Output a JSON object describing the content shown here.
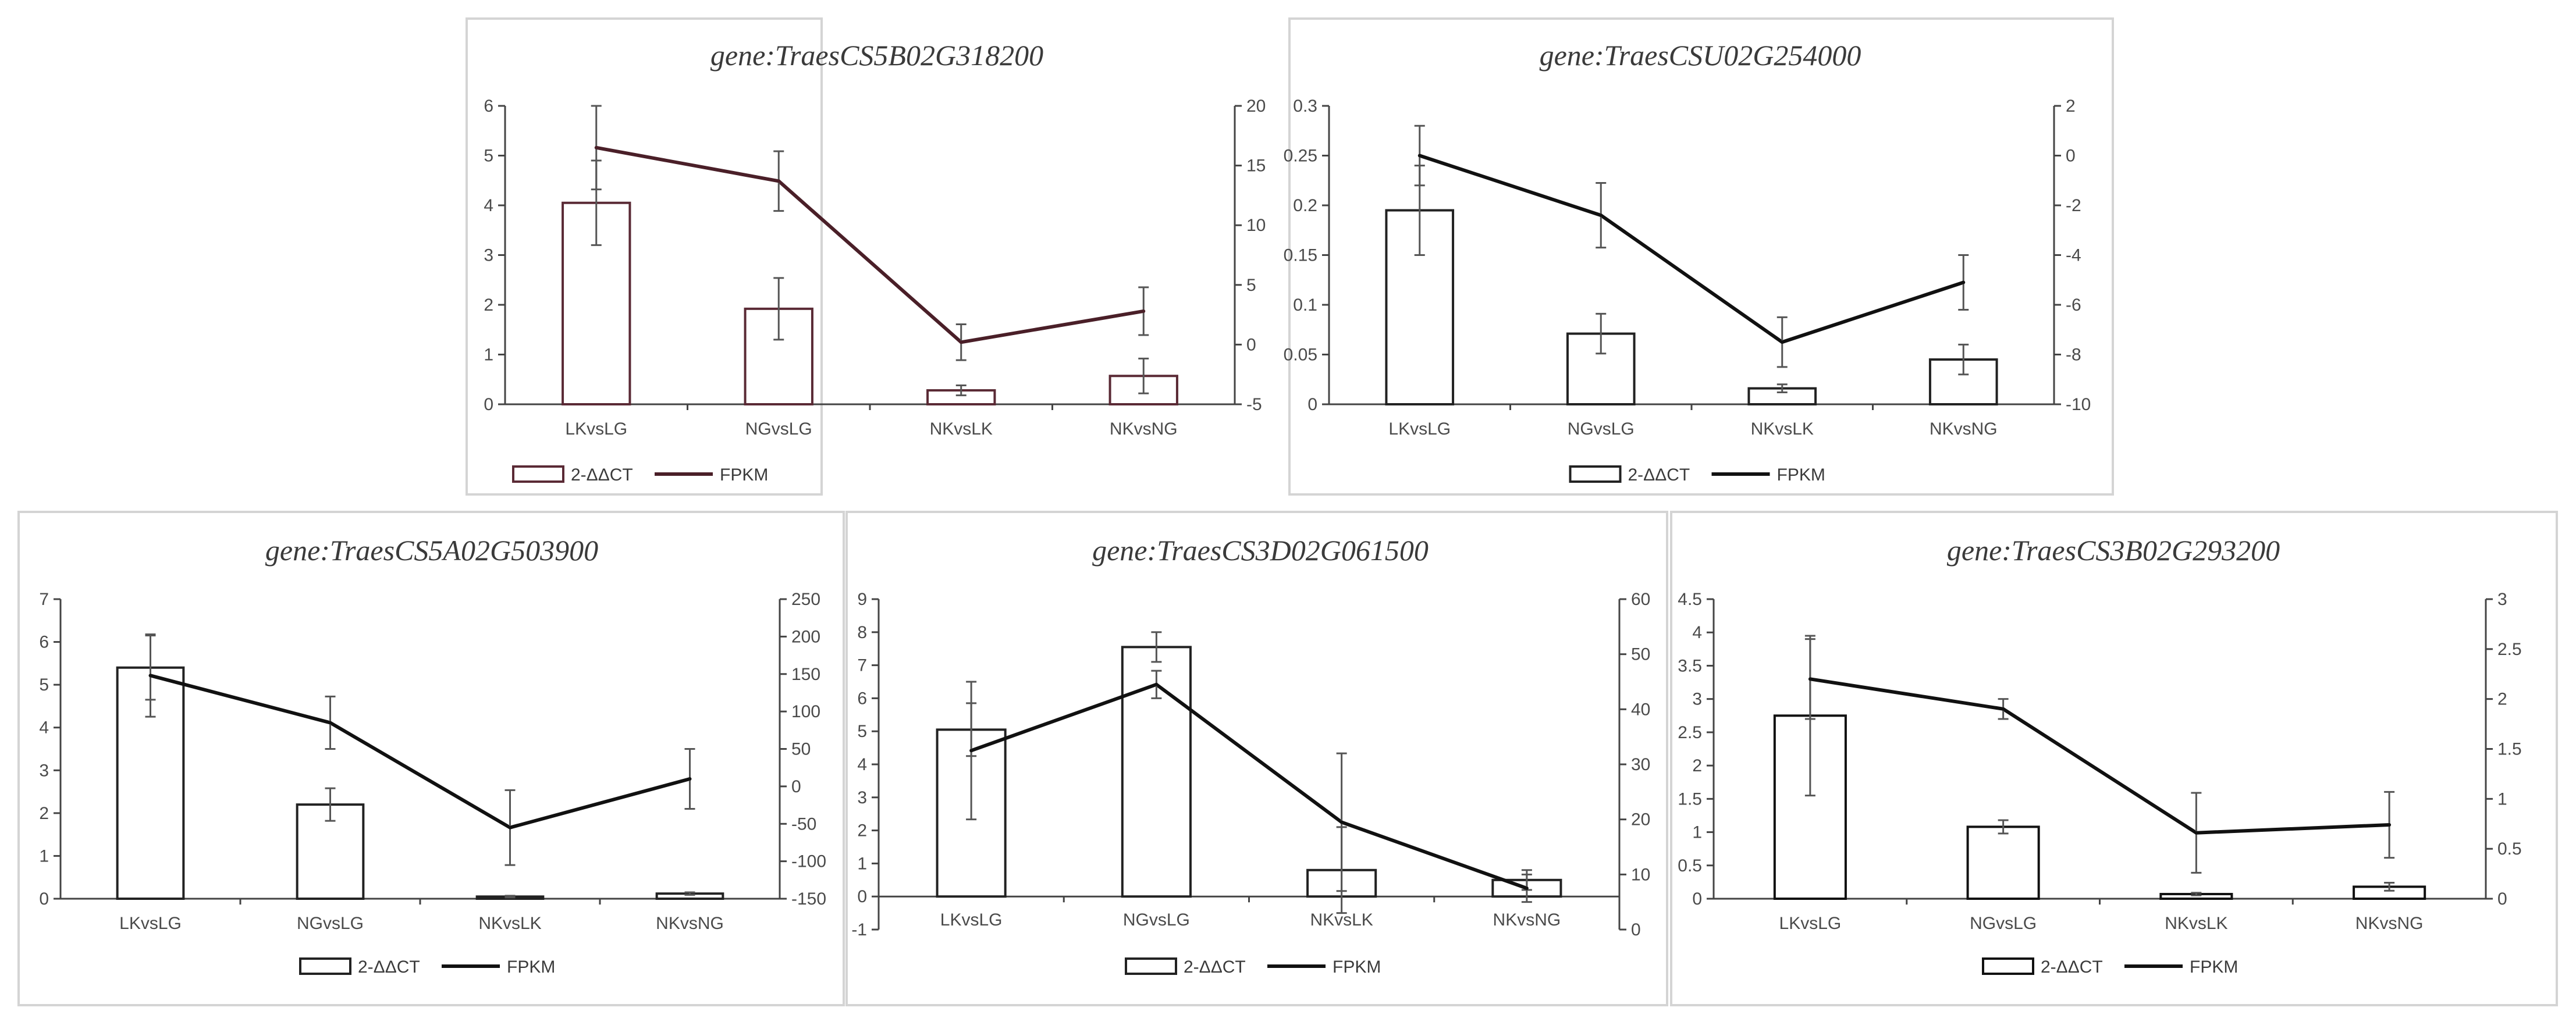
{
  "chart_data": [
    {
      "type": "bar",
      "title": "gene:TraesCS5B02G318200",
      "categories": [
        "LKvsLG",
        "NGvsLG",
        "NKvsLK",
        "NKvsNG"
      ],
      "series": [
        {
          "name": "2-ΔΔCT",
          "kind": "bar",
          "axis": "left",
          "values": [
            4.05,
            1.92,
            0.28,
            0.57
          ],
          "errors": [
            0.85,
            0.62,
            0.1,
            0.35
          ]
        },
        {
          "name": "FPKM",
          "kind": "line",
          "axis": "right",
          "values": [
            16.5,
            13.7,
            0.2,
            2.8
          ],
          "errors": [
            3.5,
            2.5,
            1.5,
            2.0
          ]
        }
      ],
      "y_left": {
        "min": 0,
        "max": 6,
        "ticks": [
          0,
          1,
          2,
          3,
          4,
          5,
          6
        ],
        "labels": [
          "0",
          "1",
          "2",
          "3",
          "4",
          "5",
          "6"
        ]
      },
      "y_right": {
        "min": -5,
        "max": 20,
        "ticks": [
          -5,
          0,
          5,
          10,
          15,
          20
        ],
        "labels": [
          "-5",
          "0",
          "5",
          "10",
          "15",
          "20"
        ]
      },
      "legend": [
        "2-ΔΔCT",
        "FPKM"
      ],
      "colors": {
        "bar": "#5a2a35",
        "line": "#4a1f28"
      }
    },
    {
      "type": "bar",
      "title": "gene:TraesCSU02G254000",
      "categories": [
        "LKvsLG",
        "NGvsLG",
        "NKvsLK",
        "NKvsNG"
      ],
      "series": [
        {
          "name": "2-ΔΔCT",
          "kind": "bar",
          "axis": "left",
          "values": [
            0.195,
            0.071,
            0.016,
            0.045
          ],
          "errors": [
            0.045,
            0.02,
            0.004,
            0.015
          ]
        },
        {
          "name": "FPKM",
          "kind": "line",
          "axis": "right",
          "values": [
            0.0,
            -2.4,
            -7.5,
            -5.1
          ],
          "errors": [
            1.2,
            1.3,
            1.0,
            1.1
          ]
        }
      ],
      "y_left": {
        "min": 0,
        "max": 0.3,
        "ticks": [
          0,
          0.05,
          0.1,
          0.15,
          0.2,
          0.25,
          0.3
        ],
        "labels": [
          "0",
          "0.05",
          "0.1",
          "0.15",
          "0.2",
          "0.25",
          "0.3"
        ]
      },
      "y_right": {
        "min": -10,
        "max": 2,
        "ticks": [
          -10,
          -8,
          -6,
          -4,
          -2,
          0,
          2
        ],
        "labels": [
          "-10",
          "-8",
          "-6",
          "-4",
          "-2",
          "0",
          "2"
        ]
      },
      "legend": [
        "2-ΔΔCT",
        "FPKM"
      ],
      "colors": {
        "bar": "#222222",
        "line": "#111111"
      }
    },
    {
      "type": "bar",
      "title": "gene:TraesCS5A02G503900",
      "categories": [
        "LKvsLG",
        "NGvsLG",
        "NKvsLK",
        "NKvsNG"
      ],
      "series": [
        {
          "name": "2-ΔΔCT",
          "kind": "bar",
          "axis": "left",
          "values": [
            5.4,
            2.2,
            0.05,
            0.12
          ],
          "errors": [
            0.75,
            0.38,
            0.02,
            0.03
          ]
        },
        {
          "name": "FPKM",
          "kind": "line",
          "axis": "right",
          "values": [
            148,
            85,
            -55,
            10
          ],
          "errors": [
            55,
            35,
            50,
            40
          ]
        }
      ],
      "y_left": {
        "min": 0,
        "max": 7,
        "ticks": [
          0,
          1,
          2,
          3,
          4,
          5,
          6,
          7
        ],
        "labels": [
          "0",
          "1",
          "2",
          "3",
          "4",
          "5",
          "6",
          "7"
        ]
      },
      "y_right": {
        "min": -150,
        "max": 250,
        "ticks": [
          -150,
          -100,
          -50,
          0,
          50,
          100,
          150,
          200,
          250
        ],
        "labels": [
          "-150",
          "-100",
          "-50",
          "0",
          "50",
          "100",
          "150",
          "200",
          "250"
        ]
      },
      "legend": [
        "2-ΔΔCT",
        "FPKM"
      ],
      "colors": {
        "bar": "#222222",
        "line": "#111111"
      }
    },
    {
      "type": "bar",
      "title": "gene:TraesCS3D02G061500",
      "categories": [
        "LKvsLG",
        "NGvsLG",
        "NKvsLK",
        "NKvsNG"
      ],
      "series": [
        {
          "name": "2-ΔΔCT",
          "kind": "bar",
          "axis": "left",
          "values": [
            5.05,
            7.55,
            0.8,
            0.5
          ],
          "errors": [
            0.8,
            0.45,
            1.3,
            0.3
          ]
        },
        {
          "name": "FPKM",
          "kind": "line",
          "axis": "right",
          "values": [
            32.5,
            44.5,
            19.5,
            7.5
          ],
          "errors": [
            12.5,
            2.5,
            12.5,
            2.5
          ]
        }
      ],
      "y_left": {
        "min": -1,
        "max": 9,
        "ticks": [
          -1,
          0,
          1,
          2,
          3,
          4,
          5,
          6,
          7,
          8,
          9
        ],
        "labels": [
          "-1",
          "0",
          "1",
          "2",
          "3",
          "4",
          "5",
          "6",
          "7",
          "8",
          "9"
        ]
      },
      "y_right": {
        "min": 0,
        "max": 60,
        "ticks": [
          0,
          10,
          20,
          30,
          40,
          50,
          60
        ],
        "labels": [
          "0",
          "10",
          "20",
          "30",
          "40",
          "50",
          "60"
        ]
      },
      "legend": [
        "2-ΔΔCT",
        "FPKM"
      ],
      "colors": {
        "bar": "#222222",
        "line": "#111111"
      }
    },
    {
      "type": "bar",
      "title": "gene:TraesCS3B02G293200",
      "categories": [
        "LKvsLG",
        "NGvsLG",
        "NKvsLK",
        "NKvsNG"
      ],
      "series": [
        {
          "name": "2-ΔΔCT",
          "kind": "bar",
          "axis": "left",
          "values": [
            2.75,
            1.08,
            0.07,
            0.18
          ],
          "errors": [
            1.2,
            0.1,
            0.02,
            0.06
          ]
        },
        {
          "name": "FPKM",
          "kind": "line",
          "axis": "right",
          "values": [
            2.2,
            1.9,
            0.66,
            0.74
          ],
          "errors": [
            0.4,
            0.1,
            0.4,
            0.33
          ]
        }
      ],
      "y_left": {
        "min": 0,
        "max": 4.5,
        "ticks": [
          0,
          0.5,
          1,
          1.5,
          2,
          2.5,
          3,
          3.5,
          4,
          4.5
        ],
        "labels": [
          "0",
          "0.5",
          "1",
          "1.5",
          "2",
          "2.5",
          "3",
          "3.5",
          "4",
          "4.5"
        ]
      },
      "y_right": {
        "min": 0,
        "max": 3,
        "ticks": [
          0,
          0.5,
          1,
          1.5,
          2,
          2.5,
          3
        ],
        "labels": [
          "0",
          "0.5",
          "1",
          "1.5",
          "2",
          "2.5",
          "3"
        ]
      },
      "legend": [
        "2-ΔΔCT",
        "FPKM"
      ],
      "colors": {
        "bar": "#111111",
        "line": "#111111"
      }
    }
  ]
}
